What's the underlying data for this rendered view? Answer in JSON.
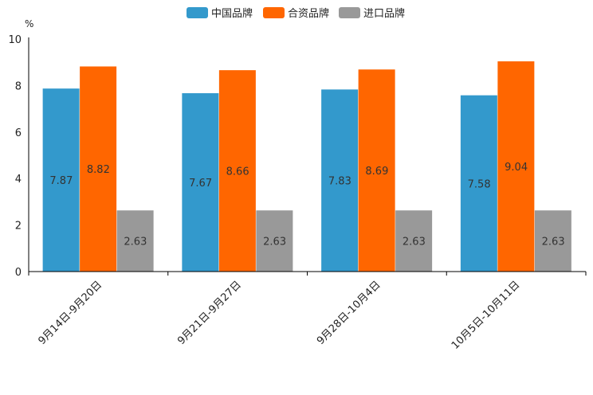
{
  "chart_data": {
    "type": "bar",
    "title": "",
    "xlabel": "",
    "ylabel": "%",
    "ylim": [
      0,
      10
    ],
    "yticks": [
      0,
      2,
      4,
      6,
      8,
      10
    ],
    "grid": false,
    "legend_position": "top-center",
    "categories": [
      "9月14日-9月20日",
      "9月21日-9月27日",
      "9月28日-10月4日",
      "10月5日-10月11日"
    ],
    "series": [
      {
        "name": "中国品牌",
        "color": "#3399cc",
        "values": [
          7.87,
          7.67,
          7.83,
          7.58
        ],
        "labels": [
          "7.87",
          "7.67",
          "7.83",
          "7.58"
        ]
      },
      {
        "name": "合资品牌",
        "color": "#ff6600",
        "values": [
          8.82,
          8.66,
          8.69,
          9.04
        ],
        "labels": [
          "8.82",
          "8.66",
          "8.69",
          "9.04"
        ]
      },
      {
        "name": "进口品牌",
        "color": "#999999",
        "values": [
          2.63,
          2.63,
          2.63,
          2.63
        ],
        "labels": [
          "2.63",
          "2.63",
          "2.63",
          "2.63"
        ]
      }
    ]
  }
}
